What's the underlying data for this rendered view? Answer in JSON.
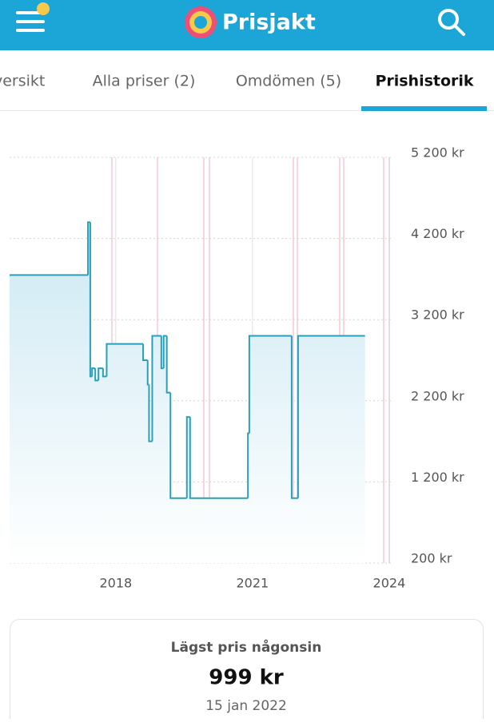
{
  "header": {
    "logo": "Prisjakt"
  },
  "tabs": [
    "versikt",
    "Alla priser (2)",
    "Omdömen (5)",
    "Prishistorik"
  ],
  "active_tab": 3,
  "chart_data": {
    "type": "line",
    "step": "after",
    "color": "#2a9fb8",
    "grid": true,
    "x": [
      2015.67,
      2017.39,
      2017.44,
      2017.48,
      2017.55,
      2017.62,
      2017.72,
      2017.8,
      2018.6,
      2018.7,
      2018.73,
      2018.8,
      2019.0,
      2019.05,
      2019.12,
      2019.2,
      2019.56,
      2019.63,
      2020.9,
      2020.93,
      2021.86,
      2022.0,
      2023.47
    ],
    "values": [
      3750,
      4400,
      2500,
      2600,
      2450,
      2600,
      2500,
      2900,
      2700,
      2400,
      1700,
      3000,
      2600,
      3000,
      2300,
      1000,
      2000,
      1000,
      1800,
      3000,
      1000,
      3000,
      3000
    ],
    "xlim": [
      2015.67,
      2024.3
    ],
    "xticks": [
      2018,
      2021,
      2024
    ],
    "ylim": [
      200,
      5200
    ],
    "yticks": [
      {
        "value": 5200,
        "label": "5 200 kr"
      },
      {
        "value": 4200,
        "label": "4 200 kr"
      },
      {
        "value": 3200,
        "label": "3 200 kr"
      },
      {
        "value": 2200,
        "label": "2 200 kr"
      },
      {
        "value": 1200,
        "label": "1 200 kr"
      },
      {
        "value": 200,
        "label": "200 kr"
      }
    ]
  },
  "summary": {
    "title": "Lägst pris någonsin",
    "price": "999 kr",
    "date": "15 jan 2022"
  }
}
